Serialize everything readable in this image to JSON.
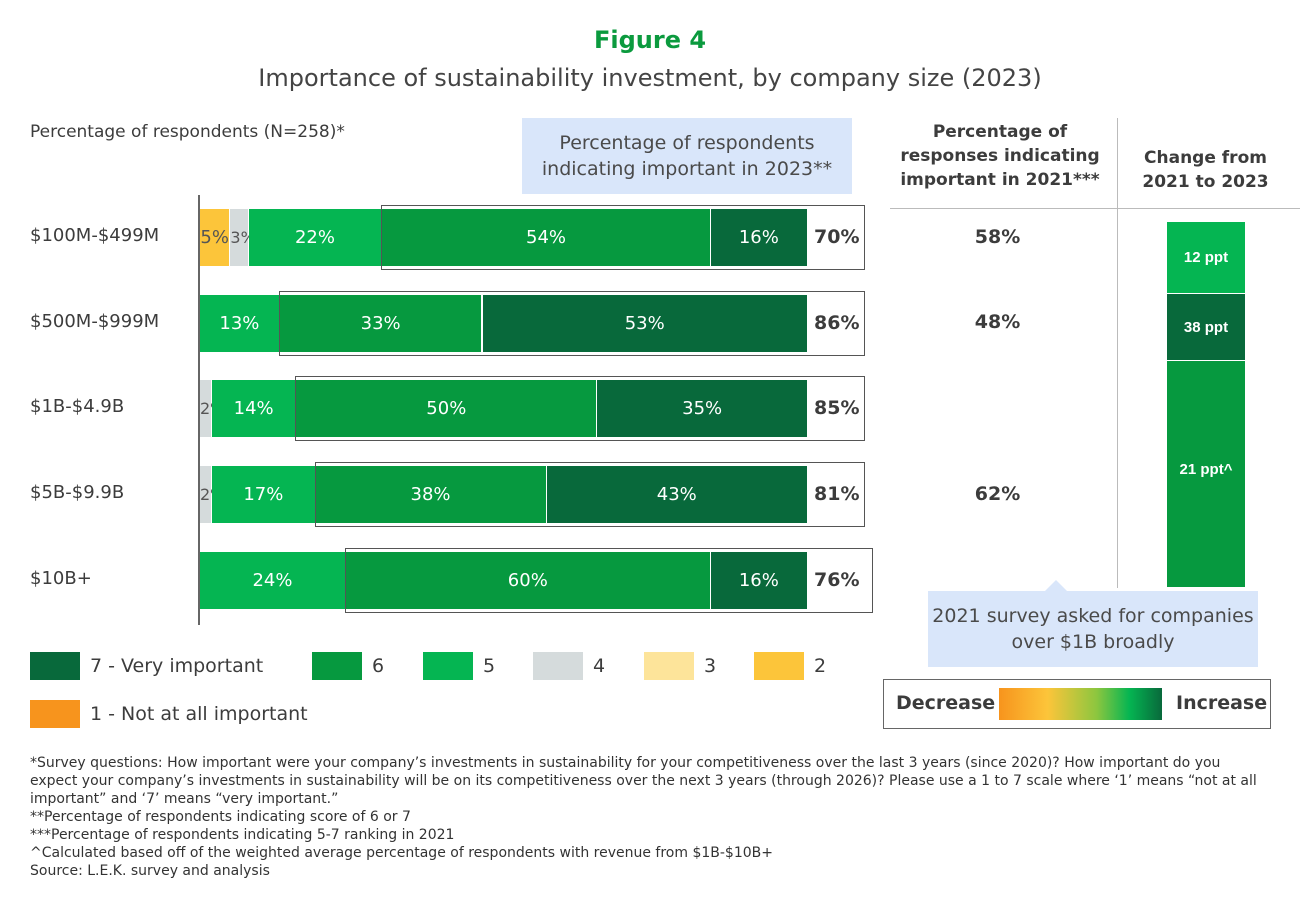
{
  "header": {
    "figure": "Figure 4",
    "title": "Importance of sustainability investment, by company size (2023)",
    "ylabel": "Percentage of respondents (N=258)*",
    "callout_2023": "Percentage of respondents indicating important in 2023**"
  },
  "colors": {
    "7": "#08693b",
    "6": "#06993f",
    "5": "#05b552",
    "4": "#d5dbdc",
    "3": "#fde49a",
    "2": "#fcc53a",
    "1": "#f7941d"
  },
  "chart_data": {
    "type": "bar",
    "orientation": "horizontal",
    "stacked": true,
    "categories": [
      "$100M-$499M",
      "$500M-$999M",
      "$1B-$4.9B",
      "$5B-$9.9B",
      "$10B+"
    ],
    "series": [
      {
        "name": "1 - Not at all important",
        "key": "1",
        "values": [
          0,
          0,
          0,
          0,
          0
        ]
      },
      {
        "name": "2",
        "key": "2",
        "values": [
          5,
          0,
          0,
          0,
          0
        ]
      },
      {
        "name": "3",
        "key": "3",
        "values": [
          0,
          0,
          0,
          0,
          0
        ]
      },
      {
        "name": "4",
        "key": "4",
        "values": [
          3,
          0,
          2,
          2,
          0
        ]
      },
      {
        "name": "5",
        "key": "5",
        "values": [
          22,
          13,
          14,
          17,
          24
        ]
      },
      {
        "name": "6",
        "key": "6",
        "values": [
          54,
          33,
          50,
          38,
          60
        ]
      },
      {
        "name": "7 - Very important",
        "key": "7",
        "values": [
          16,
          53,
          35,
          43,
          16
        ]
      }
    ],
    "totals_2023": [
      "70%",
      "86%",
      "85%",
      "81%",
      "76%"
    ],
    "legend": [
      "7 - Very important",
      "6",
      "5",
      "4",
      "3",
      "2",
      "1 - Not at all important"
    ]
  },
  "right": {
    "head_2021": "Percentage of responses indicating important in 2021***",
    "head_change": "Change from 2021 to 2023",
    "values_2021": [
      "58%",
      "48%",
      "62%"
    ],
    "changes": [
      "12 ppt",
      "38 ppt",
      "21 ppt^"
    ],
    "note": "2021 survey asked for companies over $1B broadly",
    "scale": {
      "decrease": "Decrease",
      "increase": "Increase"
    }
  },
  "footnotes": [
    "*Survey questions: How important were your company’s investments in sustainability for your competitiveness over the last 3 years (since 2020)? How important do you expect your company’s investments in sustainability will be on its competitiveness over the next 3 years (through 2026)? Please use a 1 to 7 scale where ‘1’ means “not at all important” and ‘7’ means “very important.”",
    "**Percentage of respondents indicating score of 6 or 7",
    "***Percentage of respondents indicating 5-7 ranking in 2021",
    "^Calculated based off of the weighted average percentage of respondents with revenue from $1B-$10B+",
    "Source: L.E.K. survey and analysis"
  ]
}
